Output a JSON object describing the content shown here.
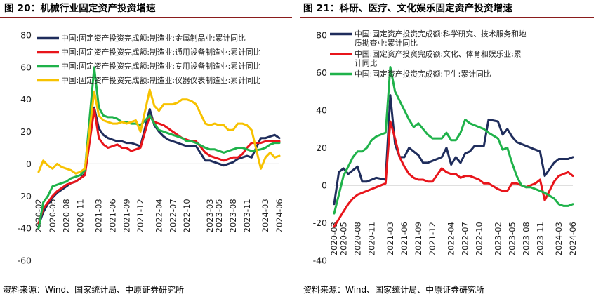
{
  "charts": [
    {
      "figure_label": "图 20：机械行业固定资产投资增速",
      "source": "资料来源：Wind、国家统计局、中原证券研究所"
    },
    {
      "figure_label": "图 21：科研、医疗、文化娱乐固定资产投资增速",
      "source": "资料来源：Wind、国家统计局、中原证券研究所"
    }
  ],
  "chart_data": [
    {
      "type": "line",
      "title": "图 20：机械行业固定资产投资增速",
      "ylim": [
        -60,
        80
      ],
      "yticks": [
        -60,
        -40,
        -20,
        0,
        20,
        40,
        60,
        80
      ],
      "xlim": [
        "2020-02",
        "2024-06"
      ],
      "xtick_labels": [
        "2020-02",
        "2020-05",
        "2020-08",
        "2020-11",
        "2021-03",
        "2021-06",
        "2021-09",
        "2021-12",
        "2022-04",
        "2022-07",
        "2022-10",
        "2023-03",
        "2023-05",
        "2023-08",
        "2023-11",
        "2024-03",
        "2024-06"
      ],
      "legend_position": "top-left",
      "series": [
        {
          "name": "中国:固定资产投资完成额:制造业:金属制品业:累计同比",
          "color": "#1f2d5c",
          "x": [
            "2020-02",
            "2020-03",
            "2020-04",
            "2020-05",
            "2020-06",
            "2020-07",
            "2020-08",
            "2020-09",
            "2020-10",
            "2020-11",
            "2020-12",
            "2021-02",
            "2021-03",
            "2021-04",
            "2021-05",
            "2021-06",
            "2021-07",
            "2021-08",
            "2021-09",
            "2021-10",
            "2021-11",
            "2021-12",
            "2022-02",
            "2022-03",
            "2022-04",
            "2022-05",
            "2022-06",
            "2022-07",
            "2022-08",
            "2022-09",
            "2022-10",
            "2022-11",
            "2022-12",
            "2023-02",
            "2023-03",
            "2023-04",
            "2023-05",
            "2023-06",
            "2023-07",
            "2023-08",
            "2023-09",
            "2023-10",
            "2023-11",
            "2023-12",
            "2024-02",
            "2024-03",
            "2024-04",
            "2024-05",
            "2024-06"
          ],
          "values": [
            -38,
            -30,
            -25,
            -21,
            -18,
            -16,
            -14,
            -12,
            -11,
            -9,
            -6,
            35,
            22,
            18,
            16,
            15,
            14,
            14,
            13,
            13,
            12,
            11,
            34,
            24,
            20,
            17,
            15,
            14,
            13,
            12,
            11,
            11,
            11,
            2,
            2,
            1,
            0,
            -1,
            0,
            1,
            3,
            4,
            5,
            4,
            16,
            16,
            17,
            18,
            16
          ]
        },
        {
          "name": "中国:固定资产投资完成额:制造业:通用设备制造业:累计同比",
          "color": "#e8151b",
          "x": [
            "2020-02",
            "2020-03",
            "2020-04",
            "2020-05",
            "2020-06",
            "2020-07",
            "2020-08",
            "2020-09",
            "2020-10",
            "2020-11",
            "2020-12",
            "2021-02",
            "2021-03",
            "2021-04",
            "2021-05",
            "2021-06",
            "2021-07",
            "2021-08",
            "2021-09",
            "2021-10",
            "2021-11",
            "2021-12",
            "2022-02",
            "2022-03",
            "2022-04",
            "2022-05",
            "2022-06",
            "2022-07",
            "2022-08",
            "2022-09",
            "2022-10",
            "2022-11",
            "2022-12",
            "2023-02",
            "2023-03",
            "2023-04",
            "2023-05",
            "2023-06",
            "2023-07",
            "2023-08",
            "2023-09",
            "2023-10",
            "2023-11",
            "2023-12",
            "2024-02",
            "2024-03",
            "2024-04",
            "2024-05",
            "2024-06"
          ],
          "values": [
            -37,
            -28,
            -24,
            -20,
            -17,
            -15,
            -13,
            -12,
            -11,
            -9,
            -7,
            34,
            16,
            12,
            10,
            11,
            12,
            10,
            10,
            8,
            9,
            10,
            30,
            26,
            25,
            24,
            22,
            20,
            18,
            16,
            15,
            14,
            14,
            7,
            5,
            4,
            3,
            2,
            3,
            4,
            4,
            6,
            10,
            13,
            13,
            14,
            14,
            14,
            14
          ]
        },
        {
          "name": "中国:固定资产投资完成额:制造业:专用设备制造业:累计同比",
          "color": "#1fb24a",
          "x": [
            "2020-02",
            "2020-03",
            "2020-04",
            "2020-05",
            "2020-06",
            "2020-07",
            "2020-08",
            "2020-09",
            "2020-10",
            "2020-11",
            "2020-12",
            "2021-02",
            "2021-03",
            "2021-04",
            "2021-05",
            "2021-06",
            "2021-07",
            "2021-08",
            "2021-09",
            "2021-10",
            "2021-11",
            "2021-12",
            "2022-02",
            "2022-03",
            "2022-04",
            "2022-05",
            "2022-06",
            "2022-07",
            "2022-08",
            "2022-09",
            "2022-10",
            "2022-11",
            "2022-12",
            "2023-02",
            "2023-03",
            "2023-04",
            "2023-05",
            "2023-06",
            "2023-07",
            "2023-08",
            "2023-09",
            "2023-10",
            "2023-11",
            "2023-12",
            "2024-02",
            "2024-03",
            "2024-04",
            "2024-05",
            "2024-06"
          ],
          "values": [
            -40,
            -24,
            -20,
            -14,
            -13,
            -12,
            -11,
            -9,
            -8,
            -7,
            -4,
            60,
            35,
            30,
            29,
            29,
            28,
            26,
            26,
            25,
            25,
            24,
            30,
            25,
            21,
            20,
            19,
            18,
            17,
            16,
            14,
            14,
            13,
            10,
            9,
            9,
            8,
            7,
            8,
            9,
            10,
            10,
            9,
            8,
            9,
            10,
            12,
            13,
            13
          ]
        },
        {
          "name": "中国:固定资产投资完成额:制造业:仪器仪表制造业:累计同比",
          "color": "#f7c200",
          "x": [
            "2020-02",
            "2020-03",
            "2020-04",
            "2020-05",
            "2020-06",
            "2020-07",
            "2020-08",
            "2020-09",
            "2020-10",
            "2020-11",
            "2020-12",
            "2021-02",
            "2021-03",
            "2021-04",
            "2021-05",
            "2021-06",
            "2021-07",
            "2021-08",
            "2021-09",
            "2021-10",
            "2021-11",
            "2021-12",
            "2022-02",
            "2022-03",
            "2022-04",
            "2022-05",
            "2022-06",
            "2022-07",
            "2022-08",
            "2022-09",
            "2022-10",
            "2022-11",
            "2022-12",
            "2023-02",
            "2023-03",
            "2023-04",
            "2023-05",
            "2023-06",
            "2023-07",
            "2023-08",
            "2023-09",
            "2023-10",
            "2023-11",
            "2023-12",
            "2024-02",
            "2024-03",
            "2024-04",
            "2024-05",
            "2024-06"
          ],
          "values": [
            -5,
            2,
            -1,
            -3,
            0,
            -2,
            -3,
            -4,
            -6,
            -5,
            -3,
            45,
            30,
            27,
            26,
            25,
            25,
            26,
            25,
            26,
            27,
            20,
            46,
            36,
            33,
            37,
            37,
            37,
            38,
            40,
            40,
            39,
            37,
            25,
            24,
            25,
            24,
            24,
            21,
            21,
            25,
            25,
            24,
            21,
            -3,
            4,
            7,
            4,
            5
          ]
        }
      ]
    },
    {
      "type": "line",
      "title": "图 21：科研、医疗、文化娱乐固定资产投资增速",
      "ylim": [
        -40,
        80
      ],
      "yticks": [
        -40,
        -20,
        0,
        20,
        40,
        60,
        80
      ],
      "xlim": [
        "2020-03",
        "2024-06"
      ],
      "xtick_labels": [
        "2020-03",
        "2020-05",
        "2020-08",
        "2020-11",
        "2021-03",
        "2021-06",
        "2021-09",
        "2021-12",
        "2022-04",
        "2022-07",
        "2022-10",
        "2023-02",
        "2023-05",
        "2023-08",
        "2023-11",
        "2024-03",
        "2024-06"
      ],
      "legend_position": "top-left",
      "series": [
        {
          "name": "中国:固定资产投资完成额:科学研究、技术服务和地质勘查业:累计同比",
          "color": "#1f2d5c",
          "x": [
            "2020-03",
            "2020-04",
            "2020-05",
            "2020-06",
            "2020-07",
            "2020-08",
            "2020-09",
            "2020-10",
            "2020-11",
            "2020-12",
            "2021-02",
            "2021-03",
            "2021-04",
            "2021-05",
            "2021-06",
            "2021-07",
            "2021-08",
            "2021-09",
            "2021-10",
            "2021-11",
            "2021-12",
            "2022-02",
            "2022-03",
            "2022-04",
            "2022-05",
            "2022-06",
            "2022-07",
            "2022-08",
            "2022-09",
            "2022-10",
            "2022-11",
            "2022-12",
            "2023-02",
            "2023-03",
            "2023-04",
            "2023-05",
            "2023-06",
            "2023-07",
            "2023-08",
            "2023-09",
            "2023-10",
            "2023-11",
            "2023-12",
            "2024-02",
            "2024-03",
            "2024-04",
            "2024-05",
            "2024-06"
          ],
          "values": [
            -10,
            7,
            9,
            6,
            8,
            10,
            2,
            2,
            3,
            4,
            3,
            48,
            22,
            15,
            15,
            20,
            18,
            16,
            12,
            12,
            13,
            15,
            20,
            11,
            15,
            12,
            17,
            18,
            21,
            21,
            21,
            35,
            34,
            27,
            30,
            26,
            23,
            22,
            21,
            20,
            19,
            18,
            5,
            12,
            14,
            14,
            14,
            15
          ]
        },
        {
          "name": "中国:固定资产投资完成额:文化、体育和娱乐业:累计同比",
          "color": "#e8151b",
          "x": [
            "2020-03",
            "2020-04",
            "2020-05",
            "2020-06",
            "2020-07",
            "2020-08",
            "2020-09",
            "2020-10",
            "2020-11",
            "2020-12",
            "2021-02",
            "2021-03",
            "2021-04",
            "2021-05",
            "2021-06",
            "2021-07",
            "2021-08",
            "2021-09",
            "2021-10",
            "2021-11",
            "2021-12",
            "2022-02",
            "2022-03",
            "2022-04",
            "2022-05",
            "2022-06",
            "2022-07",
            "2022-08",
            "2022-09",
            "2022-10",
            "2022-11",
            "2022-12",
            "2023-02",
            "2023-03",
            "2023-04",
            "2023-05",
            "2023-06",
            "2023-07",
            "2023-08",
            "2023-09",
            "2023-10",
            "2023-11",
            "2023-12",
            "2024-02",
            "2024-03",
            "2024-04",
            "2024-05",
            "2024-06"
          ],
          "values": [
            -22,
            -18,
            -14,
            -10,
            -7,
            -5,
            -4,
            -3,
            -2,
            -1,
            1,
            34,
            25,
            15,
            10,
            6,
            4,
            3,
            3,
            2,
            2,
            9,
            7,
            6,
            6,
            4,
            5,
            5,
            4,
            3,
            1,
            1,
            -2,
            -3,
            -3,
            1,
            1,
            0,
            -1,
            0,
            1,
            3,
            -8,
            2,
            5,
            6,
            7,
            5
          ]
        },
        {
          "name": "中国:固定资产投资完成额:卫生:累计同比",
          "color": "#1fb24a",
          "x": [
            "2020-03",
            "2020-04",
            "2020-05",
            "2020-06",
            "2020-07",
            "2020-08",
            "2020-09",
            "2020-10",
            "2020-11",
            "2020-12",
            "2021-02",
            "2021-03",
            "2021-04",
            "2021-05",
            "2021-06",
            "2021-07",
            "2021-08",
            "2021-09",
            "2021-10",
            "2021-11",
            "2021-12",
            "2022-02",
            "2022-03",
            "2022-04",
            "2022-05",
            "2022-06",
            "2022-07",
            "2022-08",
            "2022-09",
            "2022-10",
            "2022-11",
            "2022-12",
            "2023-02",
            "2023-03",
            "2023-04",
            "2023-05",
            "2023-06",
            "2023-07",
            "2023-08",
            "2023-09",
            "2023-10",
            "2023-11",
            "2023-12",
            "2024-02",
            "2024-03",
            "2024-04",
            "2024-05",
            "2024-06"
          ],
          "values": [
            -15,
            -5,
            5,
            10,
            15,
            18,
            18,
            20,
            24,
            26,
            28,
            63,
            50,
            45,
            40,
            35,
            31,
            33,
            30,
            27,
            25,
            25,
            28,
            24,
            24,
            28,
            35,
            33,
            32,
            31,
            30,
            28,
            25,
            19,
            20,
            12,
            5,
            0,
            -1,
            -1,
            -2,
            -3,
            -4,
            -7,
            -10,
            -11,
            -11,
            -10
          ]
        }
      ]
    }
  ]
}
